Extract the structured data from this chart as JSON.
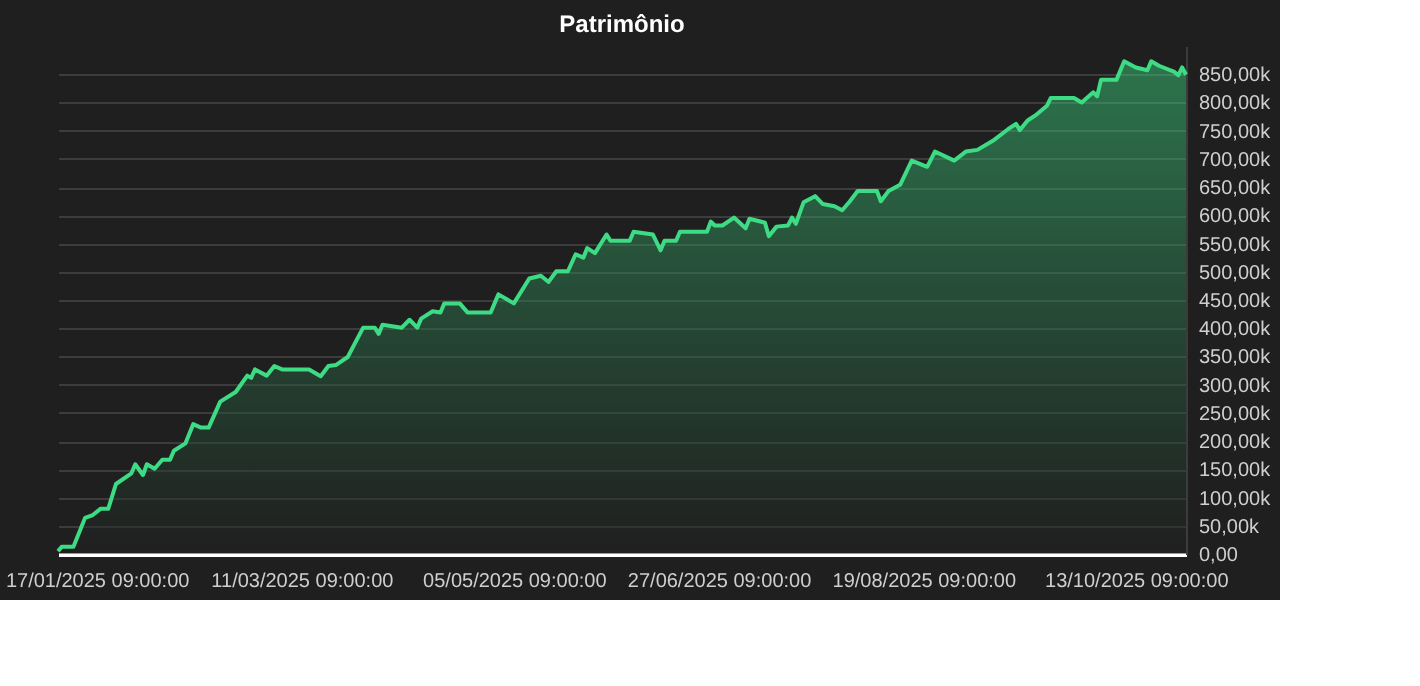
{
  "chart_data": {
    "type": "area",
    "title": "Patrimônio",
    "x": [
      "2025-01-07",
      "2025-01-08",
      "2025-01-11",
      "2025-01-14",
      "2025-01-16",
      "2025-01-18",
      "2025-01-20",
      "2025-01-22",
      "2025-01-26",
      "2025-01-27",
      "2025-01-29",
      "2025-01-30",
      "2025-02-01",
      "2025-02-03",
      "2025-02-05",
      "2025-02-06",
      "2025-02-09",
      "2025-02-11",
      "2025-02-13",
      "2025-02-15",
      "2025-02-18",
      "2025-02-22",
      "2025-02-25",
      "2025-02-26",
      "2025-02-27",
      "2025-03-02",
      "2025-03-04",
      "2025-03-06",
      "2025-03-13",
      "2025-03-16",
      "2025-03-18",
      "2025-03-20",
      "2025-03-23",
      "2025-03-27",
      "2025-03-30",
      "2025-03-31",
      "2025-04-01",
      "2025-04-06",
      "2025-04-08",
      "2025-04-10",
      "2025-04-11",
      "2025-04-14",
      "2025-04-16",
      "2025-04-17",
      "2025-04-21",
      "2025-04-23",
      "2025-04-29",
      "2025-05-01",
      "2025-05-05",
      "2025-05-09",
      "2025-05-12",
      "2025-05-14",
      "2025-05-16",
      "2025-05-19",
      "2025-05-21",
      "2025-05-23",
      "2025-05-24",
      "2025-05-26",
      "2025-05-29",
      "2025-05-30",
      "2025-06-04",
      "2025-06-05",
      "2025-06-10",
      "2025-06-12",
      "2025-06-13",
      "2025-06-16",
      "2025-06-17",
      "2025-06-24",
      "2025-06-25",
      "2025-06-26",
      "2025-06-28",
      "2025-07-01",
      "2025-07-04",
      "2025-07-05",
      "2025-07-09",
      "2025-07-10",
      "2025-07-12",
      "2025-07-15",
      "2025-07-16",
      "2025-07-17",
      "2025-07-19",
      "2025-07-22",
      "2025-07-24",
      "2025-07-27",
      "2025-07-29",
      "2025-07-31",
      "2025-08-02",
      "2025-08-07",
      "2025-08-08",
      "2025-08-10",
      "2025-08-13",
      "2025-08-16",
      "2025-08-20",
      "2025-08-22",
      "2025-08-27",
      "2025-08-30",
      "2025-09-02",
      "2025-09-06",
      "2025-09-10",
      "2025-09-12",
      "2025-09-13",
      "2025-09-15",
      "2025-09-17",
      "2025-09-20",
      "2025-09-21",
      "2025-09-27",
      "2025-09-29",
      "2025-10-02",
      "2025-10-03",
      "2025-10-04",
      "2025-10-08",
      "2025-10-10",
      "2025-10-13",
      "2025-10-16",
      "2025-10-17",
      "2025-10-19",
      "2025-10-23",
      "2025-10-24",
      "2025-10-25",
      "2025-10-26"
    ],
    "series": [
      {
        "color": "#3ddc84",
        "values": [
          5000,
          13000,
          13000,
          64000,
          69000,
          80000,
          80000,
          124000,
          143000,
          159000,
          140000,
          159000,
          151000,
          167000,
          167000,
          183000,
          196000,
          230000,
          224000,
          224000,
          270000,
          287000,
          316000,
          312000,
          327000,
          316000,
          333000,
          327000,
          327000,
          315000,
          333000,
          335000,
          349000,
          401000,
          401000,
          390000,
          406000,
          401000,
          415000,
          401000,
          417000,
          430000,
          428000,
          444000,
          444000,
          428000,
          428000,
          460000,
          444000,
          488000,
          493000,
          482000,
          501000,
          501000,
          531000,
          525000,
          542000,
          533000,
          566000,
          555000,
          555000,
          571000,
          566000,
          538000,
          555000,
          555000,
          571000,
          571000,
          589000,
          582000,
          582000,
          596000,
          577000,
          594000,
          587000,
          563000,
          580000,
          582000,
          596000,
          585000,
          623000,
          634000,
          620000,
          616000,
          609000,
          625000,
          643000,
          643000,
          625000,
          643000,
          654000,
          697000,
          686000,
          713000,
          697000,
          713000,
          716000,
          732000,
          753000,
          762000,
          751000,
          768000,
          777000,
          794000,
          808000,
          808000,
          800000,
          818000,
          811000,
          840000,
          840000,
          873000,
          862000,
          857000,
          873000,
          865000,
          854000,
          848000,
          862000,
          849000
        ]
      }
    ],
    "xlim": [
      "2025-01-07",
      "2025-10-26"
    ],
    "xticks": [
      {
        "value": "2025-01-17",
        "label": "17/01/2025 09:00:00"
      },
      {
        "value": "2025-03-11",
        "label": "11/03/2025 09:00:00"
      },
      {
        "value": "2025-05-05",
        "label": "05/05/2025 09:00:00"
      },
      {
        "value": "2025-06-27",
        "label": "27/06/2025 09:00:00"
      },
      {
        "value": "2025-08-19",
        "label": "19/08/2025 09:00:00"
      },
      {
        "value": "2025-10-13",
        "label": "13/10/2025 09:00:00"
      }
    ],
    "ylim": [
      0,
      900000
    ],
    "yticks": [
      {
        "value": 0,
        "label": "0,00"
      },
      {
        "value": 50000,
        "label": "50,00k"
      },
      {
        "value": 100000,
        "label": "100,00k"
      },
      {
        "value": 150000,
        "label": "150,00k"
      },
      {
        "value": 200000,
        "label": "200,00k"
      },
      {
        "value": 250000,
        "label": "250,00k"
      },
      {
        "value": 300000,
        "label": "300,00k"
      },
      {
        "value": 350000,
        "label": "350,00k"
      },
      {
        "value": 400000,
        "label": "400,00k"
      },
      {
        "value": 450000,
        "label": "450,00k"
      },
      {
        "value": 500000,
        "label": "500,00k"
      },
      {
        "value": 550000,
        "label": "550,00k"
      },
      {
        "value": 600000,
        "label": "600,00k"
      },
      {
        "value": 650000,
        "label": "650,00k"
      },
      {
        "value": 700000,
        "label": "700,00k"
      },
      {
        "value": 750000,
        "label": "750,00k"
      },
      {
        "value": 800000,
        "label": "800,00k"
      },
      {
        "value": 850000,
        "label": "850,00k"
      }
    ],
    "grid": "y"
  }
}
